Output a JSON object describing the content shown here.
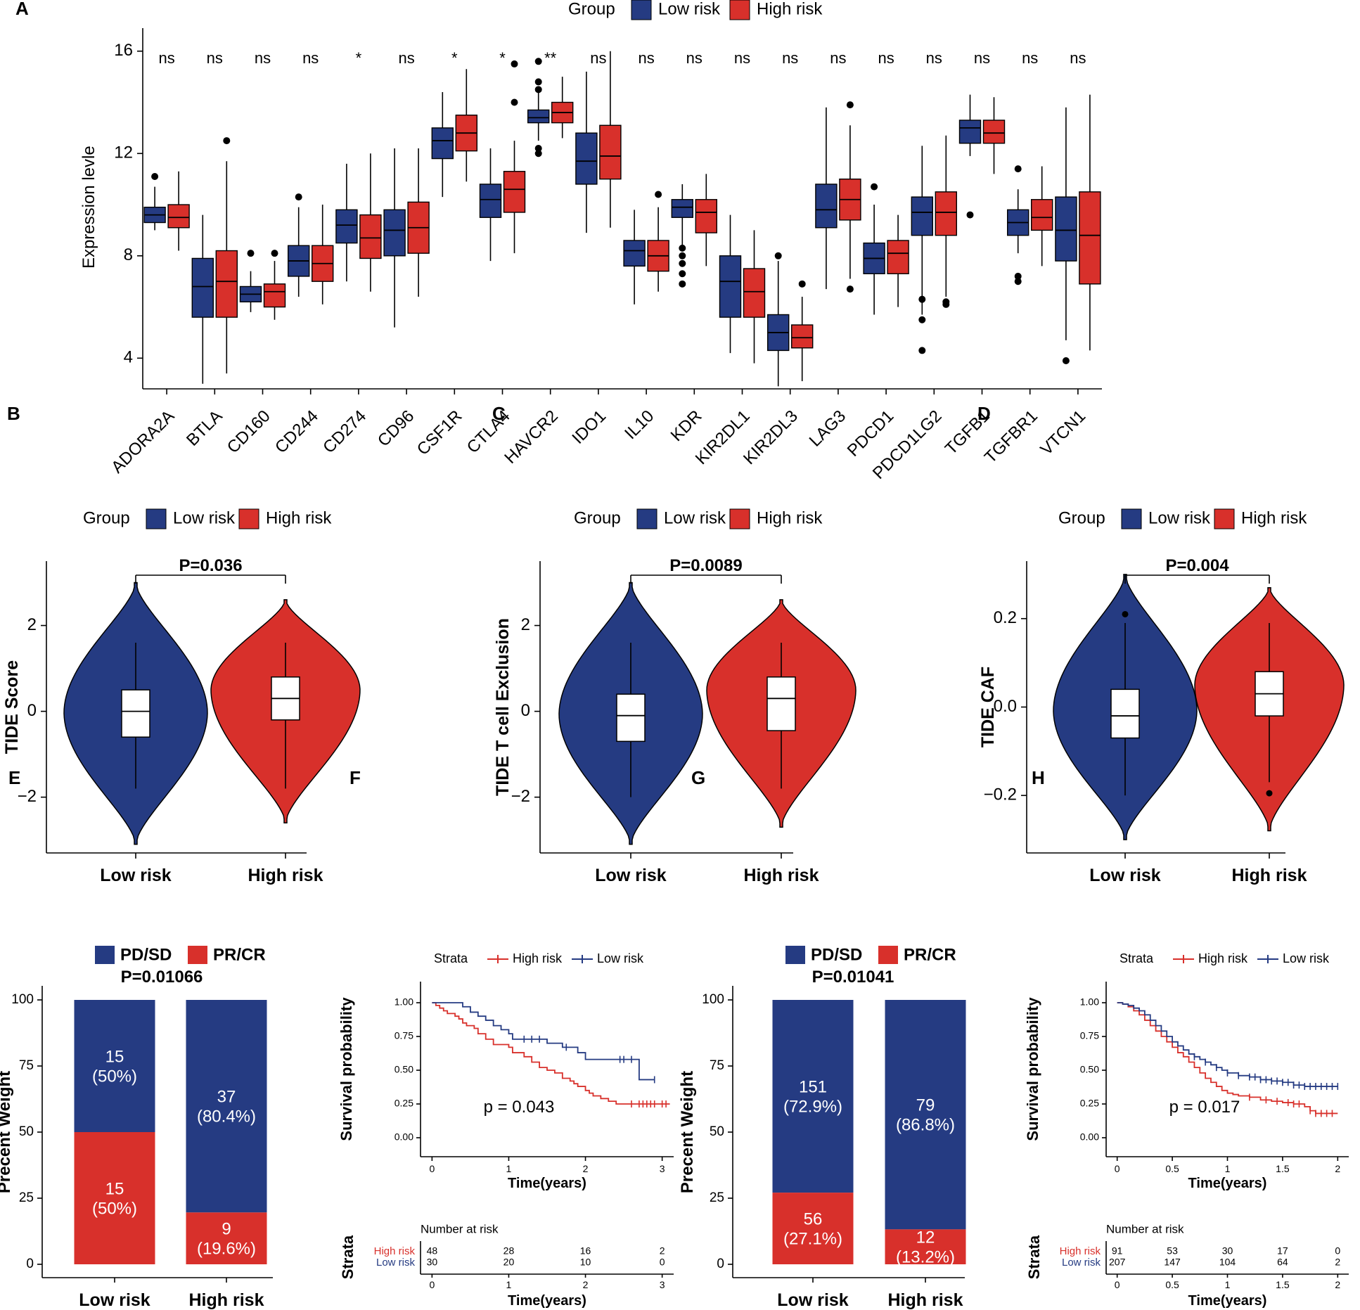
{
  "colors": {
    "low": "#253b82",
    "high": "#d8302b",
    "outline": "#000000"
  },
  "panel_labels": [
    "A",
    "B",
    "C",
    "D",
    "E",
    "F",
    "G",
    "H"
  ],
  "chart_data": [
    {
      "panel": "A",
      "type": "boxplot",
      "legend": {
        "title": "Group",
        "items": [
          "Low risk",
          "High risk"
        ]
      },
      "ylabel": "Expression levle",
      "ylim": [
        2.8,
        16.9
      ],
      "yticks": [
        4,
        8,
        12,
        16
      ],
      "genes": [
        "ADORA2A",
        "BTLA",
        "CD160",
        "CD244",
        "CD274",
        "CD96",
        "CSF1R",
        "CTLA4",
        "HAVCR2",
        "IDO1",
        "IL10",
        "KDR",
        "KIR2DL1",
        "KIR2DL3",
        "LAG3",
        "PDCD1",
        "PDCD1LG2",
        "TGFB1",
        "TGFBR1",
        "VTCN1"
      ],
      "significance": [
        "ns",
        "ns",
        "ns",
        "ns",
        "*",
        "ns",
        "*",
        "*",
        "**",
        "ns",
        "ns",
        "ns",
        "ns",
        "ns",
        "ns",
        "ns",
        "ns",
        "ns",
        "ns",
        "ns"
      ],
      "low_risk": [
        [
          9.0,
          9.3,
          9.6,
          9.9,
          10.7
        ],
        [
          3.0,
          5.6,
          6.8,
          7.9,
          9.6
        ],
        [
          5.8,
          6.2,
          6.5,
          6.8,
          7.4
        ],
        [
          6.4,
          7.2,
          7.8,
          8.4,
          9.9
        ],
        [
          7.0,
          8.5,
          9.2,
          9.8,
          11.6
        ],
        [
          5.2,
          8.0,
          9.0,
          9.8,
          12.2
        ],
        [
          10.3,
          11.8,
          12.5,
          13.0,
          14.4
        ],
        [
          7.8,
          9.5,
          10.2,
          10.8,
          12.2
        ],
        [
          12.5,
          13.2,
          13.4,
          13.7,
          14.4
        ],
        [
          8.9,
          10.8,
          11.7,
          12.8,
          15.2
        ],
        [
          6.1,
          7.6,
          8.2,
          8.6,
          9.8
        ],
        [
          8.4,
          9.5,
          9.9,
          10.2,
          10.8
        ],
        [
          4.2,
          5.6,
          7.0,
          8.0,
          9.6
        ],
        [
          2.9,
          4.3,
          5.0,
          5.7,
          7.8
        ],
        [
          6.7,
          9.1,
          9.8,
          10.8,
          13.8
        ],
        [
          5.7,
          7.3,
          7.9,
          8.5,
          10.0
        ],
        [
          5.7,
          8.8,
          9.7,
          10.3,
          12.3
        ],
        [
          11.9,
          12.4,
          13.0,
          13.3,
          14.3
        ],
        [
          8.1,
          8.8,
          9.3,
          9.8,
          10.6
        ],
        [
          4.7,
          7.8,
          9.0,
          10.3,
          13.8
        ]
      ],
      "high_risk": [
        [
          8.2,
          9.1,
          9.5,
          10.0,
          11.3
        ],
        [
          3.4,
          5.6,
          7.0,
          8.2,
          11.7
        ],
        [
          5.5,
          6.0,
          6.6,
          6.9,
          7.8
        ],
        [
          6.1,
          7.0,
          7.7,
          8.4,
          10.0
        ],
        [
          6.6,
          7.9,
          8.7,
          9.6,
          12.0
        ],
        [
          6.4,
          8.1,
          9.1,
          10.1,
          12.2
        ],
        [
          10.9,
          12.1,
          12.8,
          13.5,
          15.3
        ],
        [
          8.1,
          9.7,
          10.6,
          11.3,
          12.5
        ],
        [
          12.6,
          13.2,
          13.6,
          14.0,
          15.0
        ],
        [
          9.1,
          11.0,
          11.9,
          13.1,
          16.0
        ],
        [
          6.6,
          7.4,
          8.0,
          8.6,
          9.9
        ],
        [
          7.6,
          8.9,
          9.7,
          10.2,
          11.2
        ],
        [
          3.8,
          5.6,
          6.6,
          7.5,
          9.0
        ],
        [
          3.1,
          4.4,
          4.8,
          5.3,
          6.4
        ],
        [
          7.1,
          9.4,
          10.2,
          11.0,
          13.1
        ],
        [
          6.0,
          7.3,
          8.1,
          8.6,
          9.6
        ],
        [
          6.4,
          8.8,
          9.7,
          10.5,
          12.7
        ],
        [
          11.2,
          12.4,
          12.8,
          13.3,
          14.2
        ],
        [
          7.6,
          9.0,
          9.5,
          10.2,
          11.5
        ],
        [
          4.3,
          6.9,
          8.8,
          10.5,
          14.3
        ]
      ],
      "outliers_low": [
        [
          11.1
        ],
        [],
        [
          8.1
        ],
        [
          10.3
        ],
        [],
        [],
        [],
        [],
        [
          12.0,
          12.2,
          14.5,
          14.8,
          15.6
        ],
        [],
        [],
        [
          7.7,
          8.0,
          8.3,
          7.3,
          6.9
        ],
        [],
        [
          8.0
        ],
        [],
        [
          10.7
        ],
        [
          6.3,
          5.5,
          4.3
        ],
        [
          9.6
        ],
        [
          11.4,
          7.2,
          7.0
        ],
        [
          3.9
        ]
      ],
      "outliers_high": [
        [],
        [
          12.5
        ],
        [
          8.1
        ],
        [],
        [],
        [],
        [],
        [
          15.5,
          14.0
        ],
        [],
        [],
        [
          10.4
        ],
        [],
        [],
        [
          6.9
        ],
        [
          13.9,
          6.7
        ],
        [],
        [
          6.2,
          6.1
        ],
        [],
        [],
        []
      ]
    },
    {
      "panel": "B",
      "type": "violin",
      "legend": {
        "title": "Group",
        "items": [
          "Low risk",
          "High risk"
        ]
      },
      "ylabel": "TIDE Score",
      "categories": [
        "Low risk",
        "High risk"
      ],
      "ylim": [
        -3.3,
        3.5
      ],
      "yticks": [
        -2,
        0,
        2
      ],
      "ytick_labels": [
        "−2",
        "0",
        "2"
      ],
      "p_value": "P=0.036",
      "violin_range": [
        [
          -3.1,
          3.0
        ],
        [
          -2.6,
          2.6
        ]
      ],
      "box": [
        [
          -1.8,
          -0.6,
          0.0,
          0.5,
          1.6
        ],
        [
          -1.8,
          -0.2,
          0.3,
          0.8,
          1.6
        ]
      ],
      "outliers": [
        [],
        []
      ]
    },
    {
      "panel": "C",
      "type": "violin",
      "legend": {
        "title": "Group",
        "items": [
          "Low risk",
          "High risk"
        ]
      },
      "ylabel": "TIDE T cell Exclusion",
      "categories": [
        "Low risk",
        "High risk"
      ],
      "ylim": [
        -3.3,
        3.5
      ],
      "yticks": [
        -2,
        0,
        2
      ],
      "ytick_labels": [
        "−2",
        "0",
        "2"
      ],
      "p_value": "P=0.0089",
      "violin_range": [
        [
          -3.1,
          3.0
        ],
        [
          -2.7,
          2.6
        ]
      ],
      "box": [
        [
          -2.0,
          -0.7,
          -0.1,
          0.4,
          1.6
        ],
        [
          -1.8,
          -0.45,
          0.3,
          0.8,
          1.6
        ]
      ],
      "outliers": [
        [],
        []
      ]
    },
    {
      "panel": "D",
      "type": "violin",
      "legend": {
        "title": "Group",
        "items": [
          "Low risk",
          "High risk"
        ]
      },
      "ylabel": "TIDE CAF",
      "categories": [
        "Low risk",
        "High risk"
      ],
      "ylim": [
        -0.33,
        0.33
      ],
      "yticks": [
        -0.2,
        0.0,
        0.2
      ],
      "ytick_labels": [
        "−0.2",
        "0.0",
        "0.2"
      ],
      "p_value": "P=0.004",
      "violin_range": [
        [
          -0.3,
          0.3
        ],
        [
          -0.28,
          0.27
        ]
      ],
      "box": [
        [
          -0.2,
          -0.07,
          -0.02,
          0.04,
          0.19
        ],
        [
          -0.17,
          -0.02,
          0.03,
          0.08,
          0.19
        ]
      ],
      "outliers": [
        [
          0.21
        ],
        [
          -0.195
        ]
      ]
    },
    {
      "panel": "E",
      "type": "stacked_bar",
      "legend": [
        "PD/SD",
        "PR/CR"
      ],
      "p_value": "P=0.01066",
      "ylabel": "Precent Weight",
      "categories": [
        "Low risk",
        "High risk"
      ],
      "yticks": [
        0,
        25,
        50,
        75,
        100
      ],
      "series": [
        {
          "name": "PD/SD",
          "values": [
            50.0,
            80.4
          ],
          "counts": [
            "15",
            "37"
          ],
          "percents": [
            "(50%)",
            "(80.4%)"
          ]
        },
        {
          "name": "PR/CR",
          "values": [
            50.0,
            19.6
          ],
          "counts": [
            "15",
            "9"
          ],
          "percents": [
            "(50%)",
            "(19.6%)"
          ]
        }
      ]
    },
    {
      "panel": "F",
      "type": "kaplan_meier",
      "legend": {
        "title": "Strata",
        "items": [
          "High risk",
          "Low risk"
        ]
      },
      "xlabel": "Time(years)",
      "ylabel": "Survival probability",
      "xlim": [
        -0.15,
        3.15
      ],
      "xticks": [
        0,
        1,
        2,
        3
      ],
      "yticks": [
        "0.00",
        "0.25",
        "0.50",
        "0.75",
        "1.00"
      ],
      "p_value": "p = 0.043",
      "series": [
        {
          "name": "High risk",
          "x": [
            0,
            0.05,
            0.1,
            0.15,
            0.2,
            0.3,
            0.35,
            0.4,
            0.45,
            0.55,
            0.6,
            0.7,
            0.8,
            1.0,
            1.05,
            1.2,
            1.3,
            1.4,
            1.5,
            1.6,
            1.7,
            1.8,
            1.85,
            1.9,
            2.0,
            2.05,
            2.1,
            2.2,
            2.3,
            2.4,
            2.5,
            3.1
          ],
          "y": [
            1.0,
            0.98,
            0.96,
            0.94,
            0.92,
            0.9,
            0.88,
            0.85,
            0.83,
            0.81,
            0.77,
            0.73,
            0.69,
            0.67,
            0.63,
            0.6,
            0.56,
            0.52,
            0.5,
            0.48,
            0.44,
            0.42,
            0.4,
            0.38,
            0.35,
            0.33,
            0.31,
            0.29,
            0.27,
            0.25,
            0.25,
            0.25
          ],
          "censor_x": [
            2.6,
            2.7,
            2.75,
            2.8,
            2.85,
            2.9,
            3.0,
            3.05
          ]
        },
        {
          "name": "Low risk",
          "x": [
            0,
            0.2,
            0.4,
            0.5,
            0.6,
            0.7,
            0.8,
            0.9,
            1.0,
            1.05,
            1.2,
            1.5,
            1.7,
            1.9,
            2.0,
            2.6,
            2.7,
            2.9
          ],
          "y": [
            1.0,
            1.0,
            0.97,
            0.93,
            0.9,
            0.87,
            0.83,
            0.8,
            0.77,
            0.73,
            0.73,
            0.7,
            0.67,
            0.63,
            0.58,
            0.58,
            0.43,
            0.43
          ],
          "censor_x": [
            1.2,
            1.3,
            1.4,
            1.75,
            2.45,
            2.5,
            2.6,
            2.9
          ]
        }
      ],
      "risk_table": {
        "title": "Number at risk",
        "label": "Strata",
        "times": [
          "0",
          "1",
          "2",
          "3"
        ],
        "rows": [
          {
            "name": "High risk",
            "values": [
              "48",
              "28",
              "16",
              "2"
            ]
          },
          {
            "name": "Low risk",
            "values": [
              "30",
              "20",
              "10",
              "0"
            ]
          }
        ]
      }
    },
    {
      "panel": "G",
      "type": "stacked_bar",
      "legend": [
        "PD/SD",
        "PR/CR"
      ],
      "p_value": "P=0.01041",
      "ylabel": "Precent Weight",
      "categories": [
        "Low risk",
        "High risk"
      ],
      "yticks": [
        0,
        25,
        50,
        75,
        100
      ],
      "series": [
        {
          "name": "PD/SD",
          "values": [
            72.9,
            86.8
          ],
          "counts": [
            "151",
            "79"
          ],
          "percents": [
            "(72.9%)",
            "(86.8%)"
          ]
        },
        {
          "name": "PR/CR",
          "values": [
            27.1,
            13.2
          ],
          "counts": [
            "56",
            "12"
          ],
          "percents": [
            "(27.1%)",
            "(13.2%)"
          ]
        }
      ]
    },
    {
      "panel": "H",
      "type": "kaplan_meier",
      "legend": {
        "title": "Strata",
        "items": [
          "High risk",
          "Low risk"
        ]
      },
      "xlabel": "Time(years)",
      "ylabel": "Survival probability",
      "xlim": [
        -0.1,
        2.1
      ],
      "xticks": [
        0,
        0.5,
        1,
        1.5,
        2
      ],
      "xtick_labels": [
        "0",
        "0.5",
        "1",
        "1.5",
        "2"
      ],
      "yticks": [
        "0.00",
        "0.25",
        "0.50",
        "0.75",
        "1.00"
      ],
      "p_value": "p = 0.017",
      "series": [
        {
          "name": "High risk",
          "x": [
            0,
            0.05,
            0.1,
            0.15,
            0.2,
            0.25,
            0.3,
            0.35,
            0.4,
            0.45,
            0.5,
            0.55,
            0.6,
            0.65,
            0.7,
            0.75,
            0.8,
            0.85,
            0.9,
            0.95,
            1.0,
            1.05,
            1.1,
            1.2,
            1.3,
            1.4,
            1.5,
            1.6,
            1.7,
            1.75,
            1.8,
            2.0
          ],
          "y": [
            1.0,
            0.99,
            0.97,
            0.94,
            0.91,
            0.87,
            0.83,
            0.79,
            0.75,
            0.71,
            0.67,
            0.63,
            0.6,
            0.56,
            0.52,
            0.48,
            0.44,
            0.41,
            0.38,
            0.35,
            0.33,
            0.32,
            0.31,
            0.3,
            0.28,
            0.27,
            0.26,
            0.25,
            0.23,
            0.2,
            0.18,
            0.18
          ],
          "censor_x": [
            1.2,
            1.35,
            1.45,
            1.55,
            1.6,
            1.65,
            1.75,
            1.8,
            1.85,
            1.9,
            1.95
          ]
        },
        {
          "name": "Low risk",
          "x": [
            0,
            0.05,
            0.1,
            0.15,
            0.2,
            0.25,
            0.3,
            0.35,
            0.4,
            0.45,
            0.5,
            0.55,
            0.6,
            0.65,
            0.7,
            0.75,
            0.8,
            0.85,
            0.9,
            0.95,
            1.0,
            1.1,
            1.2,
            1.3,
            1.4,
            1.5,
            1.6,
            1.7,
            2.0
          ],
          "y": [
            1.0,
            0.99,
            0.98,
            0.96,
            0.94,
            0.91,
            0.87,
            0.83,
            0.79,
            0.75,
            0.71,
            0.68,
            0.65,
            0.62,
            0.6,
            0.58,
            0.56,
            0.54,
            0.52,
            0.5,
            0.48,
            0.46,
            0.45,
            0.43,
            0.42,
            0.41,
            0.39,
            0.38,
            0.38
          ],
          "censor_x": [
            0.7,
            0.8,
            0.9,
            1.0,
            1.1,
            1.2,
            1.25,
            1.3,
            1.35,
            1.4,
            1.45,
            1.5,
            1.55,
            1.6,
            1.65,
            1.7,
            1.75,
            1.8,
            1.85,
            1.9,
            1.95,
            2.0
          ]
        }
      ],
      "risk_table": {
        "title": "Number at risk",
        "label": "Strata",
        "times": [
          "0",
          "0.5",
          "1",
          "1.5",
          "2"
        ],
        "rows": [
          {
            "name": "High risk",
            "values": [
              "91",
              "53",
              "30",
              "17",
              "0"
            ]
          },
          {
            "name": "Low risk",
            "values": [
              "207",
              "147",
              "104",
              "64",
              "2"
            ]
          }
        ]
      }
    }
  ]
}
